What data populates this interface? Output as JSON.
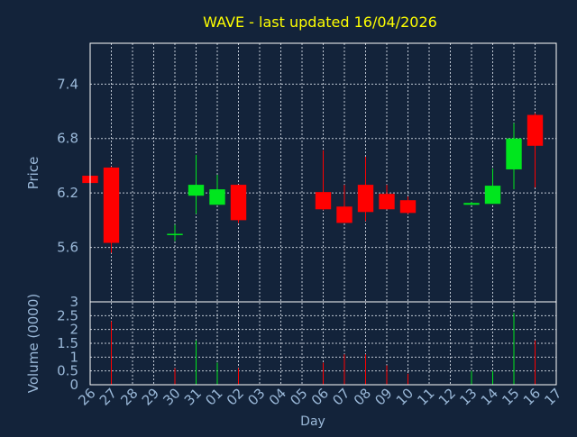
{
  "title": "WAVE - last updated 16/04/2026",
  "colors": {
    "background": "#13233a",
    "title": "#ffff00",
    "text": "#9ab8d8",
    "frame": "#ffffff",
    "grid": "#c0c8d4",
    "up": "#00e61e",
    "down": "#ff0000"
  },
  "chart_data": [
    {
      "type": "candlestick",
      "ylabel": "Price",
      "ylim": [
        5.0,
        7.85
      ],
      "yticks": [
        "5.6",
        "6.2",
        "6.8",
        "7.4"
      ],
      "x": [
        "26",
        "27",
        "28",
        "29",
        "30",
        "31",
        "01",
        "02",
        "03",
        "04",
        "05",
        "06",
        "07",
        "08",
        "09",
        "10",
        "11",
        "12",
        "13",
        "14",
        "15",
        "16",
        "17"
      ],
      "candles": [
        {
          "x": "26",
          "open": 6.39,
          "high": 6.4,
          "low": 6.3,
          "close": 6.31
        },
        {
          "x": "27",
          "open": 6.48,
          "high": 6.49,
          "low": 5.54,
          "close": 5.65
        },
        {
          "x": "30",
          "open": 5.75,
          "high": 5.85,
          "low": 5.67,
          "close": 5.75
        },
        {
          "x": "31",
          "open": 6.17,
          "high": 6.62,
          "low": 5.97,
          "close": 6.29
        },
        {
          "x": "01",
          "open": 6.07,
          "high": 6.4,
          "low": 6.07,
          "close": 6.24
        },
        {
          "x": "02",
          "open": 6.29,
          "high": 6.29,
          "low": 5.87,
          "close": 5.9
        },
        {
          "x": "06",
          "open": 6.21,
          "high": 6.67,
          "low": 6.01,
          "close": 6.02
        },
        {
          "x": "07",
          "open": 6.05,
          "high": 6.29,
          "low": 5.87,
          "close": 5.87
        },
        {
          "x": "08",
          "open": 6.29,
          "high": 6.6,
          "low": 5.89,
          "close": 5.99
        },
        {
          "x": "09",
          "open": 6.19,
          "high": 6.29,
          "low": 6.02,
          "close": 6.02
        },
        {
          "x": "10",
          "open": 6.12,
          "high": 6.16,
          "low": 5.97,
          "close": 5.98
        },
        {
          "x": "13",
          "open": 6.07,
          "high": 6.1,
          "low": 6.07,
          "close": 6.09
        },
        {
          "x": "14",
          "open": 6.08,
          "high": 6.47,
          "low": 6.08,
          "close": 6.28
        },
        {
          "x": "15",
          "open": 6.46,
          "high": 6.97,
          "low": 6.24,
          "close": 6.8
        },
        {
          "x": "16",
          "open": 7.06,
          "high": 7.08,
          "low": 6.26,
          "close": 6.72
        }
      ]
    },
    {
      "type": "bar",
      "ylabel": "Volume (0000)",
      "xlabel": "Day",
      "ylim": [
        0,
        3
      ],
      "yticks": [
        "0",
        "0.5",
        "1",
        "1.5",
        "2",
        "2.5",
        "3"
      ],
      "categories": [
        "26",
        "27",
        "30",
        "31",
        "01",
        "02",
        "06",
        "07",
        "08",
        "09",
        "10",
        "13",
        "14",
        "15",
        "16"
      ],
      "values": [
        0.1,
        2.3,
        0.6,
        1.6,
        0.8,
        0.6,
        0.8,
        1.1,
        1.1,
        0.7,
        0.4,
        0.5,
        0.5,
        2.6,
        1.6
      ],
      "direction": [
        "down",
        "down",
        "down",
        "up",
        "up",
        "down",
        "down",
        "down",
        "down",
        "down",
        "down",
        "up",
        "up",
        "up",
        "down"
      ]
    }
  ]
}
